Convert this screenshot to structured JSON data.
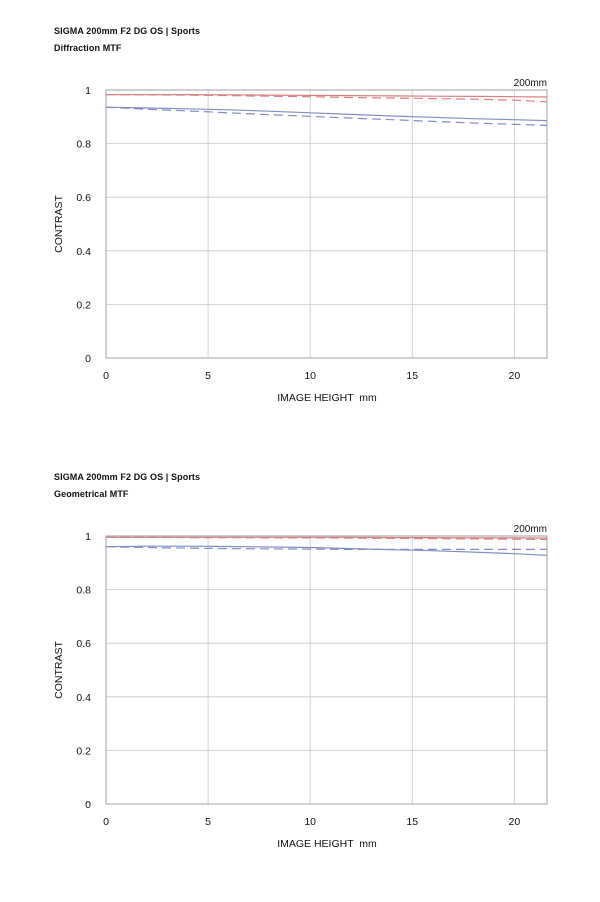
{
  "chart_data": [
    {
      "type": "line",
      "title": "SIGMA 200mm F2 DG OS | Sports",
      "subtitle": "Diffraction MTF",
      "annotation": "200mm",
      "xlabel": "IMAGE HEIGHT  mm",
      "ylabel": "CONTRAST",
      "xlim": [
        0,
        21.6
      ],
      "ylim": [
        0,
        1
      ],
      "xticks": [
        0,
        5,
        10,
        15,
        20
      ],
      "yticks": [
        0,
        0.2,
        0.4,
        0.6,
        0.8,
        1
      ],
      "ytick_labels": [
        "0",
        "0.2",
        "0.4",
        "0.6",
        "0.8",
        "1"
      ],
      "grid": true,
      "x": [
        0,
        2,
        4,
        6,
        8,
        10,
        12,
        14,
        16,
        18,
        20,
        21.6
      ],
      "series": [
        {
          "color": "#d98080",
          "style": "solid",
          "values": [
            0.983,
            0.983,
            0.983,
            0.982,
            0.981,
            0.98,
            0.979,
            0.978,
            0.977,
            0.976,
            0.975,
            0.974
          ]
        },
        {
          "color": "#d98080",
          "style": "dashed",
          "values": [
            0.983,
            0.982,
            0.981,
            0.979,
            0.977,
            0.975,
            0.972,
            0.97,
            0.968,
            0.966,
            0.962,
            0.956
          ]
        },
        {
          "color": "#7f8fc4",
          "style": "solid",
          "values": [
            0.936,
            0.933,
            0.93,
            0.926,
            0.921,
            0.915,
            0.909,
            0.903,
            0.898,
            0.893,
            0.889,
            0.886
          ]
        },
        {
          "color": "#7f8fc4",
          "style": "dashed",
          "values": [
            0.936,
            0.928,
            0.922,
            0.915,
            0.908,
            0.902,
            0.895,
            0.889,
            0.883,
            0.877,
            0.872,
            0.868
          ]
        }
      ]
    },
    {
      "type": "line",
      "title": "SIGMA 200mm F2 DG OS | Sports",
      "subtitle": "Geometrical MTF",
      "annotation": "200mm",
      "xlabel": "IMAGE HEIGHT  mm",
      "ylabel": "CONTRAST",
      "xlim": [
        0,
        21.6
      ],
      "ylim": [
        0,
        1
      ],
      "xticks": [
        0,
        5,
        10,
        15,
        20
      ],
      "yticks": [
        0,
        0.2,
        0.4,
        0.6,
        0.8,
        1
      ],
      "ytick_labels": [
        "0",
        "0.2",
        "0.4",
        "0.6",
        "0.8",
        "1"
      ],
      "grid": true,
      "x": [
        0,
        2,
        4,
        6,
        8,
        10,
        12,
        14,
        16,
        18,
        20,
        21.6
      ],
      "series": [
        {
          "color": "#d98080",
          "style": "solid",
          "values": [
            0.995,
            0.995,
            0.995,
            0.995,
            0.995,
            0.995,
            0.995,
            0.994,
            0.994,
            0.993,
            0.993,
            0.992
          ]
        },
        {
          "color": "#d98080",
          "style": "dashed",
          "values": [
            0.995,
            0.995,
            0.994,
            0.994,
            0.993,
            0.993,
            0.992,
            0.991,
            0.99,
            0.989,
            0.988,
            0.987
          ]
        },
        {
          "color": "#7f8fc4",
          "style": "solid",
          "values": [
            0.96,
            0.962,
            0.962,
            0.961,
            0.959,
            0.957,
            0.953,
            0.949,
            0.945,
            0.94,
            0.934,
            0.928
          ]
        },
        {
          "color": "#7f8fc4",
          "style": "dashed",
          "values": [
            0.96,
            0.957,
            0.955,
            0.953,
            0.952,
            0.951,
            0.95,
            0.95,
            0.95,
            0.95,
            0.95,
            0.95
          ]
        }
      ]
    }
  ]
}
